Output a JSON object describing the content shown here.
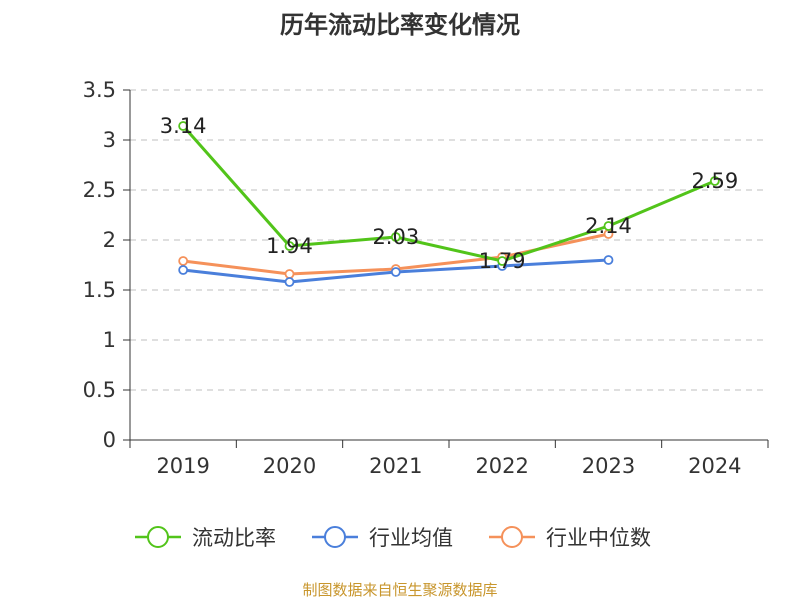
{
  "chart_data": {
    "type": "line",
    "title": "历年流动比率变化情况",
    "categories": [
      "2019",
      "2020",
      "2021",
      "2022",
      "2023",
      "2024"
    ],
    "y_ticks": [
      "0",
      "0.5",
      "1",
      "1.5",
      "2",
      "2.5",
      "3",
      "3.5"
    ],
    "ylim": [
      0,
      3.5
    ],
    "grid": "horizontal dashed",
    "legend_position": "bottom",
    "series": [
      {
        "name": "流动比率",
        "color": "#52c41a",
        "values": [
          3.14,
          1.94,
          2.03,
          1.79,
          2.14,
          2.59
        ],
        "labels": [
          "3.14",
          "1.94",
          "2.03",
          "1.79",
          "2.14",
          "2.59"
        ]
      },
      {
        "name": "行业均值",
        "color": "#4a7fdb",
        "values": [
          1.7,
          1.58,
          1.68,
          1.74,
          1.8,
          null
        ]
      },
      {
        "name": "行业中位数",
        "color": "#f5915a",
        "values": [
          1.79,
          1.66,
          1.71,
          1.83,
          2.06,
          null
        ]
      }
    ]
  },
  "footer": {
    "source": "制图数据来自恒生聚源数据库"
  }
}
